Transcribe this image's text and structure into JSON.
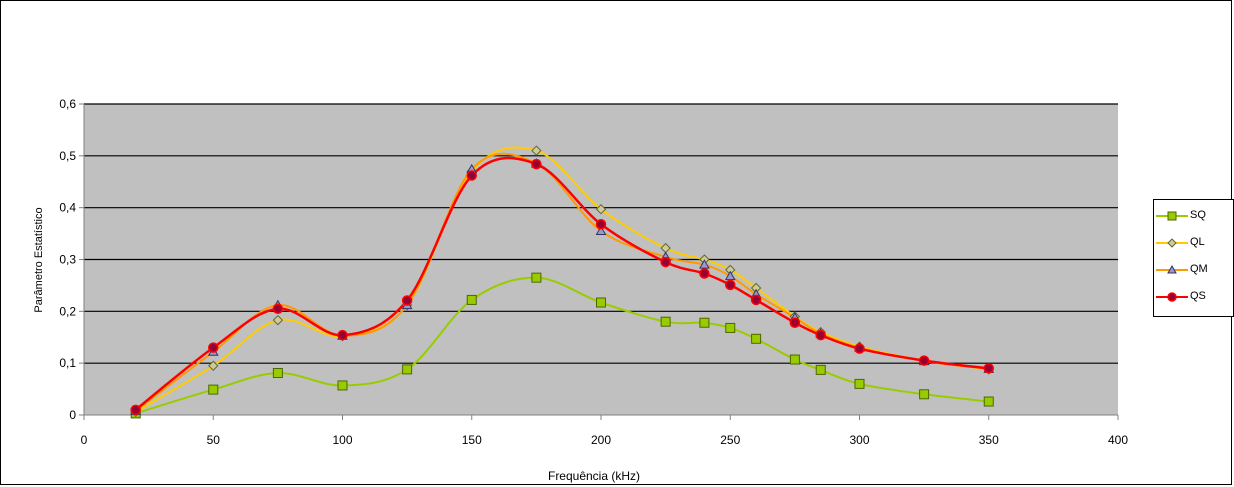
{
  "chart_data": {
    "type": "line",
    "title": "",
    "xlabel": "Frequência (kHz)",
    "ylabel": "Parâmetro Estatístico",
    "xlim": [
      0,
      400
    ],
    "ylim": [
      0,
      0.6
    ],
    "x_ticks": [
      "0",
      "50",
      "100",
      "150",
      "200",
      "250",
      "300",
      "350",
      "400"
    ],
    "y_ticks": [
      "0",
      "0,1",
      "0,2",
      "0,3",
      "0,4",
      "0,5",
      "0,6"
    ],
    "x_tick_values": [
      0,
      50,
      100,
      150,
      200,
      250,
      300,
      350,
      400
    ],
    "y_tick_values": [
      0,
      0.1,
      0.2,
      0.3,
      0.4,
      0.5,
      0.6
    ],
    "grid": "horizontal",
    "smooth": true,
    "plot_background": "#c0c0c0",
    "legend_position": "right",
    "x": [
      20,
      50,
      75,
      100,
      125,
      150,
      175,
      200,
      225,
      240,
      250,
      260,
      275,
      285,
      300,
      325,
      350
    ],
    "series": [
      {
        "name": "SQ",
        "color": "#99cc00",
        "marker": "square",
        "marker_fill": "#99cc00",
        "values": [
          0.003,
          0.049,
          0.081,
          0.057,
          0.088,
          0.222,
          0.265,
          0.217,
          0.18,
          0.178,
          0.168,
          0.147,
          0.107,
          0.087,
          0.06,
          0.04,
          0.026
        ]
      },
      {
        "name": "QL",
        "color": "#ffcc00",
        "marker": "diamond",
        "marker_fill": "#cccc99",
        "values": [
          0.006,
          0.095,
          0.183,
          0.152,
          0.212,
          0.47,
          0.51,
          0.397,
          0.322,
          0.3,
          0.28,
          0.245,
          0.19,
          0.16,
          0.132,
          0.105,
          0.088
        ]
      },
      {
        "name": "QM",
        "color": "#ff9900",
        "marker": "triangle",
        "marker_fill": "#9999cc",
        "values": [
          0.008,
          0.122,
          0.212,
          0.153,
          0.212,
          0.474,
          0.485,
          0.355,
          0.305,
          0.29,
          0.268,
          0.233,
          0.188,
          0.157,
          0.13,
          0.104,
          0.089
        ]
      },
      {
        "name": "QS",
        "color": "#ff0000",
        "marker": "circle",
        "marker_fill": "#990033",
        "values": [
          0.01,
          0.13,
          0.205,
          0.154,
          0.221,
          0.462,
          0.484,
          0.368,
          0.295,
          0.273,
          0.251,
          0.222,
          0.178,
          0.154,
          0.128,
          0.105,
          0.09
        ]
      }
    ]
  }
}
